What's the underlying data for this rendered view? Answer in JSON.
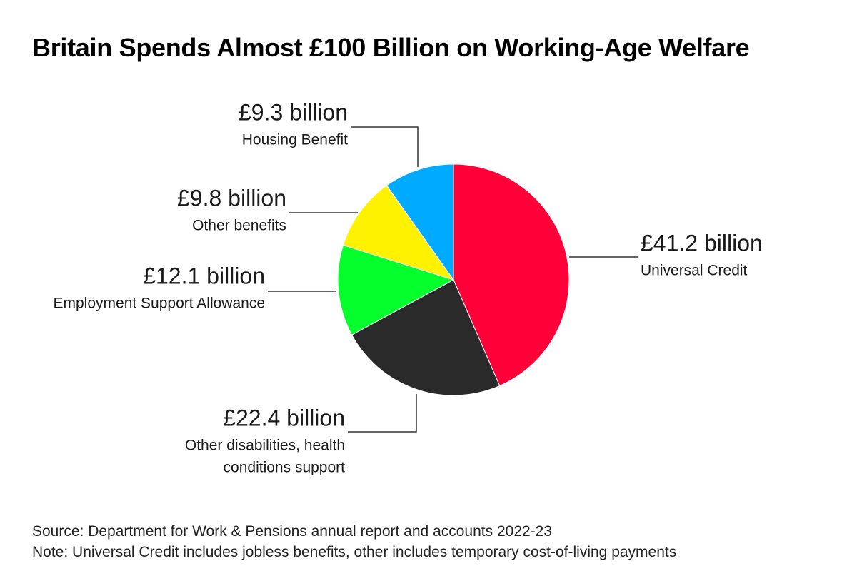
{
  "title": "Britain Spends Almost £100 Billion on Working-Age Welfare",
  "footer": {
    "source": "Source: Department for Work & Pensions annual report and accounts 2022-23",
    "note": "Note: Universal Credit includes jobless benefits, other includes temporary cost-of-living payments"
  },
  "chart_data": {
    "type": "pie",
    "title": "Britain Spends Almost £100 Billion on Working-Age Welfare",
    "unit": "£ billion",
    "slices": [
      {
        "name": "Universal Credit",
        "value": 41.2,
        "value_label": "£41.2 billion",
        "color": "#ff0039"
      },
      {
        "name": "Other disabilities, health conditions support",
        "value": 22.4,
        "value_label": "£22.4 billion",
        "color": "#2a2a2a"
      },
      {
        "name": "Employment Support Allowance",
        "value": 12.1,
        "value_label": "£12.1 billion",
        "color": "#05ff2c"
      },
      {
        "name": "Other benefits",
        "value": 9.8,
        "value_label": "£9.8 billion",
        "color": "#fff200"
      },
      {
        "name": "Housing Benefit",
        "value": 9.3,
        "value_label": "£9.3 billion",
        "color": "#00aaff"
      }
    ],
    "label_lines": {
      "Other disabilities, health conditions support": [
        "Other disabilities, health",
        "conditions support"
      ]
    }
  }
}
